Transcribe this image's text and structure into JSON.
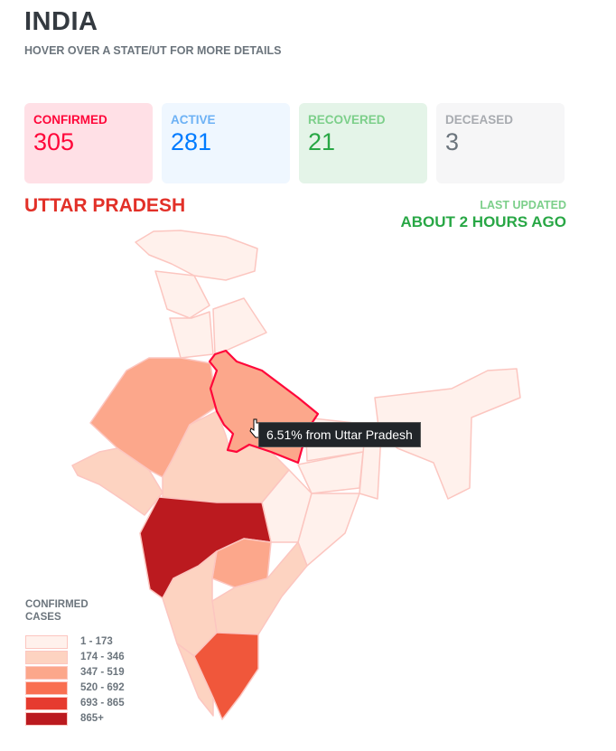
{
  "header": {
    "title": "INDIA",
    "subtitle": "HOVER OVER A STATE/UT FOR MORE DETAILS"
  },
  "cards": [
    {
      "label": "CONFIRMED",
      "value": "305",
      "bg": "#ffe0e6",
      "label_color": "#ff073a",
      "value_color": "#ff073a"
    },
    {
      "label": "ACTIVE",
      "value": "281",
      "bg": "#eff7ff",
      "label_color": "#6cb1f5",
      "value_color": "#007bff"
    },
    {
      "label": "RECOVERED",
      "value": "21",
      "bg": "#e4f4e8",
      "label_color": "#7ccf8a",
      "value_color": "#28a745"
    },
    {
      "label": "DECEASED",
      "value": "3",
      "bg": "#f6f6f7",
      "label_color": "#a8abb0",
      "value_color": "#6c757d"
    }
  ],
  "selected_state": "UTTAR PRADESH",
  "last_updated": {
    "label": "LAST UPDATED",
    "value": "ABOUT 2 HOURS AGO"
  },
  "tooltip": "6.51% from Uttar Pradesh",
  "legend": {
    "title": "CONFIRMED CASES",
    "items": [
      {
        "range": "1 - 173",
        "color": "#fff1ec"
      },
      {
        "range": "174 - 346",
        "color": "#fdd3c1"
      },
      {
        "range": "347 - 519",
        "color": "#fca78b"
      },
      {
        "range": "520 - 692",
        "color": "#f96f51"
      },
      {
        "range": "693 - 865",
        "color": "#e63b2f"
      },
      {
        "range": "865+",
        "color": "#bb1a1f"
      }
    ]
  }
}
